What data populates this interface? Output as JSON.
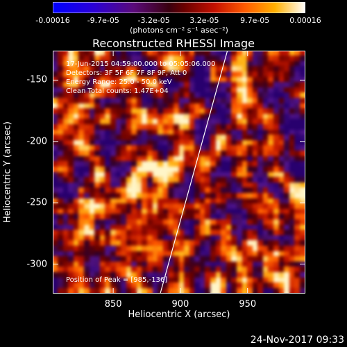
{
  "chart_data": {
    "type": "heatmap",
    "title": "Reconstructed RHESSI Image",
    "xlabel": "Heliocentric X (arcsec)",
    "ylabel": "Heliocentric Y (arcsec)",
    "xlim": [
      805,
      993
    ],
    "ylim": [
      -324,
      -126
    ],
    "xticks": [
      850,
      900,
      950
    ],
    "yticks": [
      -150,
      -200,
      -250,
      -300
    ],
    "colorbar": {
      "ticks": [
        "-0.00016",
        "-9.7e-05",
        "-3.2e-05",
        "3.2e-05",
        "9.7e-05",
        "0.00016"
      ],
      "units": "(photons cm⁻² s⁻¹ asec⁻²)",
      "colormap": "rainbow-heat",
      "range": [
        -0.00016,
        0.00016
      ]
    },
    "annotations": {
      "time": "17-Jun-2015 04:59:00.000 to 05:05:06.000",
      "detectors": "Detectors: 3F 5F 6F 7F 8F 9F, Att 0",
      "energy": "Energy Range: 25.0 - 50.0 keV",
      "clean": "Clean    Total counts: 1.47E+04",
      "peak": "Position of Peak = [985,-136]"
    },
    "limb_line": {
      "x": [
        885,
        935
      ],
      "y": [
        -324,
        -126
      ]
    }
  },
  "footer": {
    "date": "24-Nov-2017 09:33"
  },
  "colors": {
    "background": "#000000",
    "text": "#ffffff"
  }
}
